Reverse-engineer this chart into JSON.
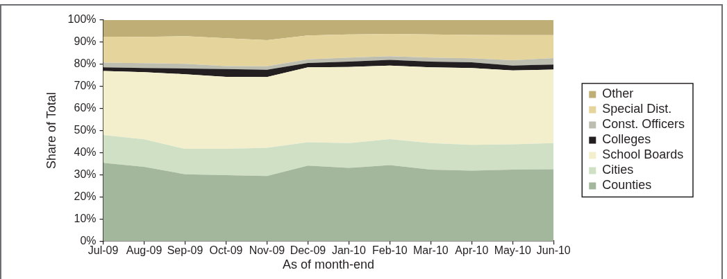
{
  "chart_data": {
    "type": "area",
    "stacked": true,
    "xlabel": "As of month-end",
    "ylabel": "Share of Total",
    "legend": "right",
    "categories": [
      "Jul-09",
      "Aug-09",
      "Sep-09",
      "Oct-09",
      "Nov-09",
      "Dec-09",
      "Jan-10",
      "Feb-10",
      "Mar-10",
      "Apr-10",
      "May-10",
      "Jun-10"
    ],
    "ylim": [
      0,
      100
    ],
    "yticks": [
      {
        "value": 0,
        "label": "0%"
      },
      {
        "value": 10,
        "label": "10%"
      },
      {
        "value": 20,
        "label": "20%"
      },
      {
        "value": 30,
        "label": "30%"
      },
      {
        "value": 40,
        "label": "40%"
      },
      {
        "value": 50,
        "label": "50%"
      },
      {
        "value": 60,
        "label": "60%"
      },
      {
        "value": 70,
        "label": "70%"
      },
      {
        "value": 80,
        "label": "80%"
      },
      {
        "value": 90,
        "label": "90%"
      },
      {
        "value": 100,
        "label": "100%"
      }
    ],
    "series": [
      {
        "name": "Counties",
        "color": "#a3b79c",
        "values": [
          35.4,
          33.6,
          30.2,
          29.8,
          29.4,
          34.1,
          33.1,
          34.4,
          32.3,
          31.9,
          32.3,
          32.5
        ]
      },
      {
        "name": "Cities",
        "color": "#cfe0c5",
        "values": [
          12.6,
          12.4,
          11.5,
          11.9,
          12.8,
          10.6,
          11.2,
          11.7,
          12.0,
          11.6,
          11.5,
          11.8
        ]
      },
      {
        "name": "School Boards",
        "color": "#f3efcd",
        "values": [
          29.0,
          30.4,
          33.8,
          32.6,
          32.0,
          33.9,
          34.5,
          33.3,
          34.3,
          34.8,
          33.4,
          33.3
        ]
      },
      {
        "name": "Colleges",
        "color": "#231f20",
        "values": [
          1.6,
          1.9,
          2.6,
          3.5,
          3.3,
          2.0,
          2.4,
          2.6,
          2.6,
          2.6,
          2.2,
          2.3
        ]
      },
      {
        "name": "Const. Officers",
        "color": "#bdbdb0",
        "values": [
          2.1,
          2.2,
          2.1,
          1.4,
          1.6,
          1.6,
          1.8,
          1.6,
          1.8,
          1.8,
          2.4,
          2.9
        ]
      },
      {
        "name": "Special Dist.",
        "color": "#e5d49b",
        "values": [
          11.8,
          11.9,
          12.5,
          12.6,
          11.8,
          10.8,
          10.5,
          10.1,
          10.5,
          10.6,
          11.4,
          10.4
        ]
      },
      {
        "name": "Other",
        "color": "#bfaf76",
        "values": [
          7.5,
          7.6,
          7.3,
          8.2,
          9.1,
          7.0,
          6.5,
          6.3,
          6.5,
          6.7,
          6.8,
          6.8
        ]
      }
    ]
  }
}
